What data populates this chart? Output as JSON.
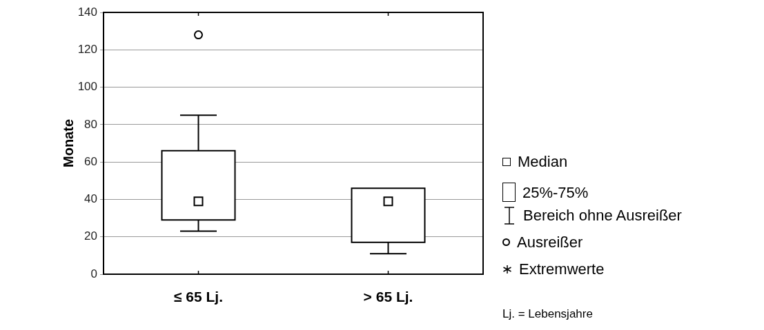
{
  "chart_data": {
    "type": "box",
    "ylabel": "Monate",
    "categories": [
      "≤ 65 Lj.",
      "> 65 Lj."
    ],
    "boxes": [
      {
        "low": 23,
        "q1": 29,
        "median": 39,
        "q3": 66,
        "high": 85,
        "outliers": [
          128
        ]
      },
      {
        "low": 11,
        "q1": 17,
        "median": 39,
        "q3": 46,
        "high": 46
      }
    ],
    "ylim": [
      0,
      140
    ],
    "yticks": [
      0,
      20,
      40,
      60,
      80,
      100,
      120,
      140
    ],
    "grid": "y",
    "legend": false,
    "annotations": [
      "Median",
      "25%-75%",
      "Bereich ohne Ausreißer",
      "Ausreißer",
      "Extremwerte",
      "Lj. = Lebensjahre"
    ]
  }
}
